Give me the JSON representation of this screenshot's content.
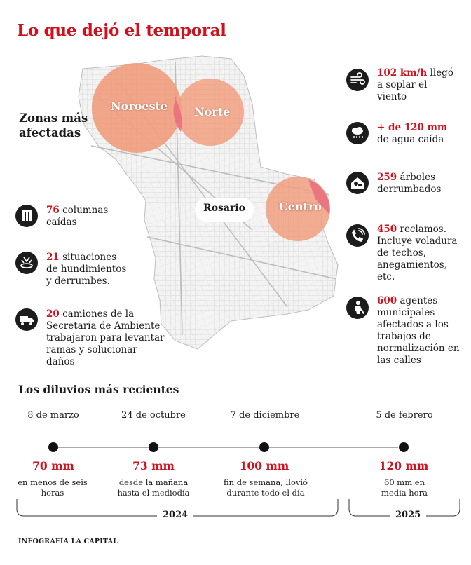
{
  "title": "Lo que dejó el temporal",
  "zones_title": "Zonas más afectadas",
  "map": {
    "city_label": "Rosario",
    "zones": [
      "Noroeste",
      "Norte",
      "Centro"
    ]
  },
  "left_stats": [
    {
      "icon": "columns-icon",
      "number": "76",
      "text": "columnas caídas"
    },
    {
      "icon": "sinkhole-icon",
      "number": "21",
      "text": "situaciones de hundimientos y derrumbes."
    },
    {
      "icon": "truck-icon",
      "number": "20",
      "text": "camiones de la Secretaría de Ambiente trabajaron para levantar ramas y solucionar daños"
    }
  ],
  "right_stats": [
    {
      "icon": "wind-icon",
      "number": "102 km/h",
      "text": "llegó a soplar el viento"
    },
    {
      "icon": "rain-cloud-icon",
      "number": "+ de 120 mm",
      "text": "de agua caída"
    },
    {
      "icon": "fallen-tree-icon",
      "number": "259",
      "text": "árboles derrumbados"
    },
    {
      "icon": "phone-icon",
      "number": "450",
      "text": "reclamos. Incluye voladura de techos, anegamientos, etc."
    },
    {
      "icon": "worker-icon",
      "number": "600",
      "text": "agentes municipales afectados a los trabajos de normalización en las calles"
    }
  ],
  "timeline_title": "Los diluvios más recientes",
  "timeline": [
    {
      "date": "8 de marzo",
      "amount": "70 mm",
      "desc": "en menos de seis horas"
    },
    {
      "date": "24 de octubre",
      "amount": "73 mm",
      "desc": "desde la mañana hasta el mediodía"
    },
    {
      "date": "7 de diciembre",
      "amount": "100 mm",
      "desc": "fin de semana, llovió durante todo el día"
    },
    {
      "date": "5 de febrero",
      "amount": "120 mm",
      "desc": "60 mm en media hora"
    }
  ],
  "years": [
    "2024",
    "2025"
  ],
  "credit": "INFOGRAFÍA LA CAPITAL",
  "colors": {
    "accent": "#d0101d",
    "zone_fill": "#f08a64",
    "zone_edge": "#e9707f",
    "icon_bg": "#1c1c1c"
  }
}
